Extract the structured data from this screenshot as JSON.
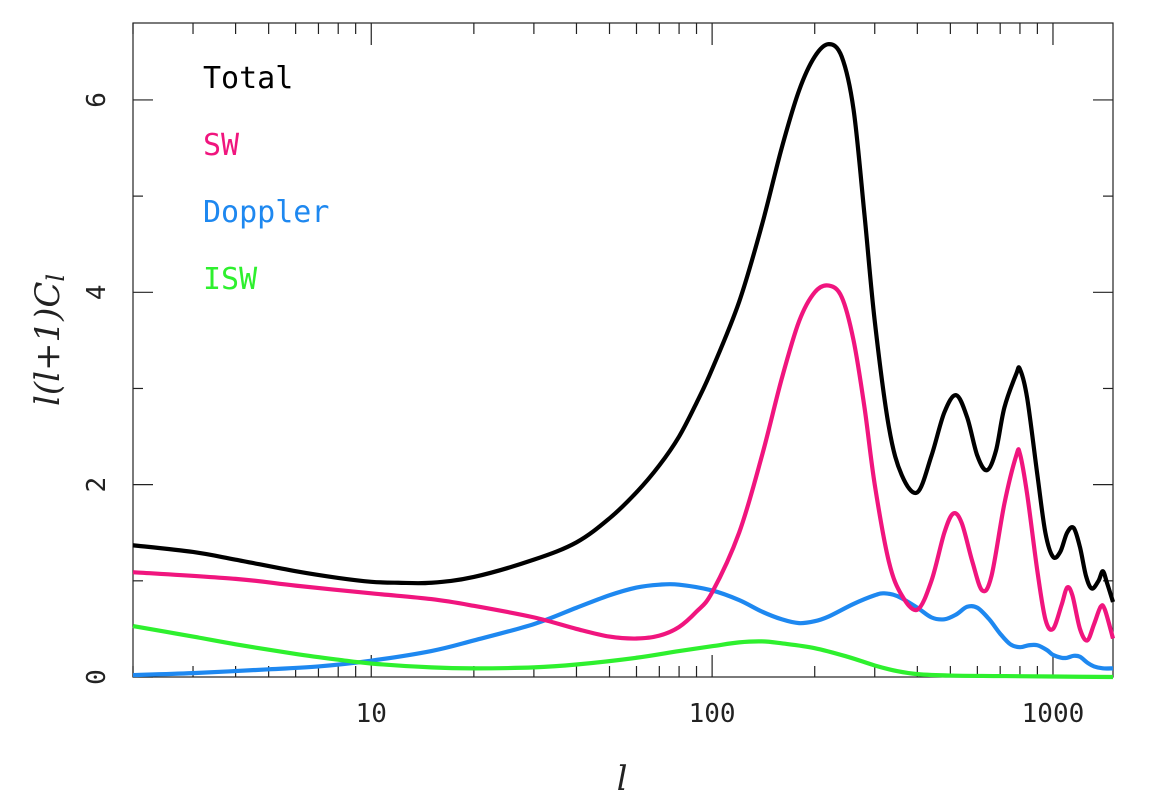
{
  "chart_data": {
    "type": "line",
    "xlabel": "l",
    "ylabel": "l(l+1)C_l",
    "xscale": "log",
    "xlim": [
      2,
      1500
    ],
    "ylim": [
      0,
      6.8
    ],
    "xticks": [
      {
        "value": 10,
        "label": "10"
      },
      {
        "value": 100,
        "label": "100"
      },
      {
        "value": 1000,
        "label": "1000"
      }
    ],
    "yticks": [
      {
        "value": 0,
        "label": "0"
      },
      {
        "value": 2,
        "label": "2"
      },
      {
        "value": 4,
        "label": "4"
      },
      {
        "value": 6,
        "label": "6"
      }
    ],
    "grid": false,
    "legend_position": "top-left",
    "series": [
      {
        "name": "Total",
        "color": "#000000",
        "points": [
          [
            2,
            1.37
          ],
          [
            3,
            1.3
          ],
          [
            4,
            1.22
          ],
          [
            6,
            1.1
          ],
          [
            8,
            1.03
          ],
          [
            10,
            0.99
          ],
          [
            12,
            0.98
          ],
          [
            15,
            0.98
          ],
          [
            20,
            1.04
          ],
          [
            30,
            1.22
          ],
          [
            40,
            1.4
          ],
          [
            50,
            1.65
          ],
          [
            60,
            1.92
          ],
          [
            70,
            2.2
          ],
          [
            80,
            2.5
          ],
          [
            90,
            2.85
          ],
          [
            100,
            3.2
          ],
          [
            120,
            3.9
          ],
          [
            140,
            4.7
          ],
          [
            160,
            5.5
          ],
          [
            180,
            6.1
          ],
          [
            200,
            6.45
          ],
          [
            220,
            6.58
          ],
          [
            240,
            6.45
          ],
          [
            260,
            5.9
          ],
          [
            280,
            4.8
          ],
          [
            300,
            3.7
          ],
          [
            330,
            2.6
          ],
          [
            360,
            2.1
          ],
          [
            400,
            1.92
          ],
          [
            440,
            2.3
          ],
          [
            480,
            2.75
          ],
          [
            520,
            2.93
          ],
          [
            560,
            2.7
          ],
          [
            600,
            2.3
          ],
          [
            640,
            2.15
          ],
          [
            680,
            2.35
          ],
          [
            720,
            2.8
          ],
          [
            780,
            3.15
          ],
          [
            800,
            3.2
          ],
          [
            840,
            2.9
          ],
          [
            900,
            2.1
          ],
          [
            950,
            1.5
          ],
          [
            1000,
            1.25
          ],
          [
            1050,
            1.3
          ],
          [
            1100,
            1.5
          ],
          [
            1150,
            1.55
          ],
          [
            1200,
            1.35
          ],
          [
            1250,
            1.05
          ],
          [
            1300,
            0.92
          ],
          [
            1360,
            1.0
          ],
          [
            1400,
            1.1
          ],
          [
            1440,
            0.98
          ],
          [
            1500,
            0.78
          ]
        ]
      },
      {
        "name": "SW",
        "color": "#f0157e",
        "points": [
          [
            2,
            1.09
          ],
          [
            4,
            1.02
          ],
          [
            6,
            0.95
          ],
          [
            10,
            0.87
          ],
          [
            15,
            0.81
          ],
          [
            20,
            0.74
          ],
          [
            30,
            0.62
          ],
          [
            40,
            0.5
          ],
          [
            50,
            0.42
          ],
          [
            60,
            0.4
          ],
          [
            70,
            0.43
          ],
          [
            80,
            0.52
          ],
          [
            90,
            0.68
          ],
          [
            100,
            0.88
          ],
          [
            120,
            1.5
          ],
          [
            140,
            2.3
          ],
          [
            160,
            3.1
          ],
          [
            180,
            3.7
          ],
          [
            200,
            4.0
          ],
          [
            220,
            4.07
          ],
          [
            240,
            3.95
          ],
          [
            260,
            3.5
          ],
          [
            280,
            2.8
          ],
          [
            300,
            2.0
          ],
          [
            330,
            1.2
          ],
          [
            360,
            0.85
          ],
          [
            400,
            0.7
          ],
          [
            440,
            1.0
          ],
          [
            480,
            1.5
          ],
          [
            510,
            1.7
          ],
          [
            540,
            1.6
          ],
          [
            580,
            1.2
          ],
          [
            620,
            0.9
          ],
          [
            660,
            1.05
          ],
          [
            720,
            1.8
          ],
          [
            780,
            2.3
          ],
          [
            800,
            2.32
          ],
          [
            840,
            1.9
          ],
          [
            900,
            1.1
          ],
          [
            950,
            0.6
          ],
          [
            1000,
            0.5
          ],
          [
            1060,
            0.75
          ],
          [
            1100,
            0.93
          ],
          [
            1140,
            0.85
          ],
          [
            1200,
            0.5
          ],
          [
            1260,
            0.38
          ],
          [
            1320,
            0.55
          ],
          [
            1380,
            0.73
          ],
          [
            1420,
            0.7
          ],
          [
            1500,
            0.4
          ]
        ]
      },
      {
        "name": "Doppler",
        "color": "#1e88f0",
        "points": [
          [
            2,
            0.02
          ],
          [
            3,
            0.04
          ],
          [
            5,
            0.08
          ],
          [
            7,
            0.11
          ],
          [
            10,
            0.17
          ],
          [
            15,
            0.27
          ],
          [
            20,
            0.38
          ],
          [
            30,
            0.55
          ],
          [
            40,
            0.72
          ],
          [
            50,
            0.85
          ],
          [
            60,
            0.93
          ],
          [
            70,
            0.96
          ],
          [
            80,
            0.96
          ],
          [
            100,
            0.9
          ],
          [
            120,
            0.8
          ],
          [
            140,
            0.68
          ],
          [
            160,
            0.6
          ],
          [
            180,
            0.56
          ],
          [
            200,
            0.58
          ],
          [
            220,
            0.63
          ],
          [
            260,
            0.76
          ],
          [
            300,
            0.85
          ],
          [
            320,
            0.87
          ],
          [
            350,
            0.84
          ],
          [
            400,
            0.72
          ],
          [
            440,
            0.62
          ],
          [
            480,
            0.6
          ],
          [
            520,
            0.65
          ],
          [
            560,
            0.73
          ],
          [
            600,
            0.72
          ],
          [
            650,
            0.6
          ],
          [
            700,
            0.45
          ],
          [
            750,
            0.34
          ],
          [
            800,
            0.31
          ],
          [
            850,
            0.33
          ],
          [
            900,
            0.33
          ],
          [
            960,
            0.28
          ],
          [
            1000,
            0.23
          ],
          [
            1060,
            0.2
          ],
          [
            1100,
            0.2
          ],
          [
            1150,
            0.22
          ],
          [
            1200,
            0.21
          ],
          [
            1260,
            0.15
          ],
          [
            1320,
            0.11
          ],
          [
            1400,
            0.09
          ],
          [
            1500,
            0.09
          ]
        ]
      },
      {
        "name": "ISW",
        "color": "#2ef02e",
        "points": [
          [
            2,
            0.53
          ],
          [
            3,
            0.42
          ],
          [
            4,
            0.34
          ],
          [
            6,
            0.24
          ],
          [
            8,
            0.18
          ],
          [
            10,
            0.14
          ],
          [
            15,
            0.1
          ],
          [
            20,
            0.09
          ],
          [
            30,
            0.1
          ],
          [
            40,
            0.13
          ],
          [
            60,
            0.2
          ],
          [
            80,
            0.27
          ],
          [
            100,
            0.32
          ],
          [
            120,
            0.36
          ],
          [
            140,
            0.37
          ],
          [
            160,
            0.35
          ],
          [
            200,
            0.3
          ],
          [
            250,
            0.21
          ],
          [
            300,
            0.12
          ],
          [
            350,
            0.06
          ],
          [
            400,
            0.03
          ],
          [
            500,
            0.015
          ],
          [
            700,
            0.01
          ],
          [
            1000,
            0.005
          ],
          [
            1500,
            0.0
          ]
        ]
      }
    ]
  }
}
